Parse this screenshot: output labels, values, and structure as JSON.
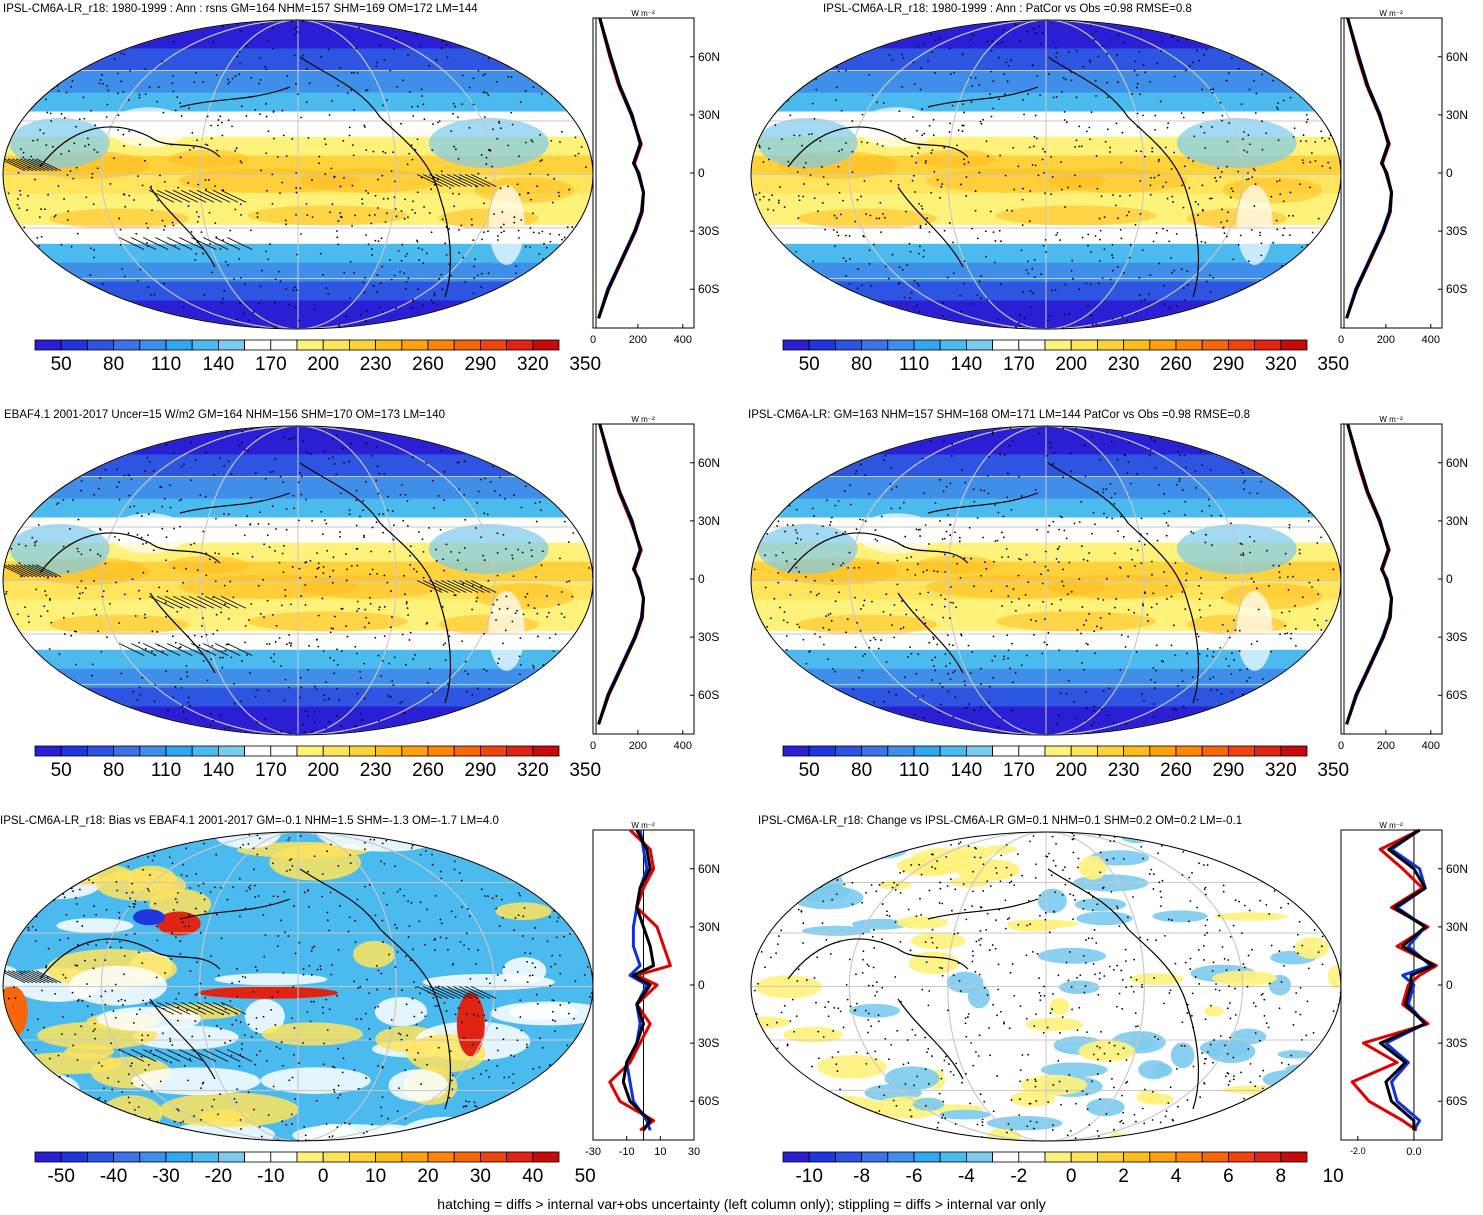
{
  "palettes": {
    "abs": [
      "#2b1fd6",
      "#1f36de",
      "#2e55e2",
      "#3c73e6",
      "#3f8fea",
      "#32a6ee",
      "#4bbaef",
      "#7ccbee",
      "#ffffff",
      "#ffffff",
      "#fff27a",
      "#ffe45c",
      "#ffd23c",
      "#ffbc1e",
      "#ffa10f",
      "#ff850a",
      "#f8660a",
      "#ef4410",
      "#e02414",
      "#c80a0a"
    ],
    "diff": [
      "#2b1fd6",
      "#1f36de",
      "#2e55e2",
      "#3c73e6",
      "#3f8fea",
      "#32a6ee",
      "#4bbaef",
      "#7ccbee",
      "#ffffff",
      "#ffffff",
      "#fff27a",
      "#ffe45c",
      "#ffd23c",
      "#ffbc1e",
      "#ffa10f",
      "#ff850a",
      "#f8660a",
      "#ef4410",
      "#e02414",
      "#c80a0a"
    ]
  },
  "colors": {
    "model_line": "#e00000",
    "obs_line": "#1030e0",
    "ens_line": "#000000",
    "grid": "#c8c8c8"
  },
  "footnote": "hatching = diffs > internal var+obs uncertainty (left column only); stippling = diffs > internal var only",
  "panels": [
    {
      "title": "IPSL-CM6A-LR_r18: 1980-1999 : Ann : rsns GM=164 NHM=157 SHM=169 OM=172 LM=144",
      "kind": "abs",
      "hatch": true,
      "colorbar_ticks": [
        "50",
        "80",
        "110",
        "140",
        "170",
        "200",
        "230",
        "260",
        "290",
        "320",
        "350"
      ],
      "profile": {
        "unit": "W m⁻²",
        "lat_ticks": [
          "60N",
          "30N",
          "0",
          "30S",
          "60S"
        ],
        "x_ticks": [
          "0",
          "200",
          "400"
        ],
        "xlim": [
          0,
          450
        ]
      }
    },
    {
      "title": "IPSL-CM6A-LR_r18: 1980-1999 : Ann : PatCor vs Obs =0.98 RMSE=0.8",
      "kind": "abs",
      "hatch": false,
      "colorbar_ticks": [
        "50",
        "80",
        "110",
        "140",
        "170",
        "200",
        "230",
        "260",
        "290",
        "320",
        "350"
      ],
      "profile": {
        "unit": "W m⁻²",
        "lat_ticks": [
          "60N",
          "30N",
          "0",
          "30S",
          "60S"
        ],
        "x_ticks": [
          "0",
          "200",
          "400"
        ],
        "xlim": [
          0,
          450
        ]
      }
    },
    {
      "title": "EBAF4.1 2001-2017 Uncer=15 W/m2 GM=164 NHM=156 SHM=170 OM=173 LM=140",
      "kind": "abs",
      "hatch": true,
      "colorbar_ticks": [
        "50",
        "80",
        "110",
        "140",
        "170",
        "200",
        "230",
        "260",
        "290",
        "320",
        "350"
      ],
      "profile": {
        "unit": "W m⁻²",
        "lat_ticks": [
          "60N",
          "30N",
          "0",
          "30S",
          "60S"
        ],
        "x_ticks": [
          "0",
          "200",
          "400"
        ],
        "xlim": [
          0,
          450
        ]
      }
    },
    {
      "title": "IPSL-CM6A-LR: GM=163 NHM=157 SHM=168 OM=171 LM=144 PatCor vs Obs =0.98 RMSE=0.8",
      "kind": "abs",
      "hatch": false,
      "colorbar_ticks": [
        "50",
        "80",
        "110",
        "140",
        "170",
        "200",
        "230",
        "260",
        "290",
        "320",
        "350"
      ],
      "profile": {
        "unit": "W m⁻²",
        "lat_ticks": [
          "60N",
          "30N",
          "0",
          "30S",
          "60S"
        ],
        "x_ticks": [
          "0",
          "200",
          "400"
        ],
        "xlim": [
          0,
          450
        ]
      }
    },
    {
      "title": "IPSL-CM6A-LR_r18: Bias vs EBAF4.1 2001-2017 GM=-0.1 NHM=1.5 SHM=-1.3 OM=-1.7 LM=4.0",
      "kind": "bias",
      "hatch": true,
      "colorbar_ticks": [
        "-50",
        "-40",
        "-30",
        "-20",
        "-10",
        "0",
        "10",
        "20",
        "30",
        "40",
        "50"
      ],
      "profile": {
        "unit": "W m⁻²",
        "lat_ticks": [
          "60N",
          "30N",
          "0",
          "30S",
          "60S"
        ],
        "x_ticks": [
          "-30",
          "-10",
          "10",
          "30"
        ],
        "xlim": [
          -30,
          30
        ]
      }
    },
    {
      "title": "IPSL-CM6A-LR_r18: Change vs IPSL-CM6A-LR GM=0.1 NHM=0.1 SHM=0.2 OM=0.2 LM=-0.1",
      "kind": "change",
      "hatch": false,
      "colorbar_ticks": [
        "-10",
        "-8",
        "-6",
        "-4",
        "-2",
        "0",
        "2",
        "4",
        "6",
        "8",
        "10"
      ],
      "profile": {
        "unit": "W m⁻²",
        "lat_ticks": [
          "60N",
          "30N",
          "0",
          "30S",
          "60S"
        ],
        "x_ticks": [
          "-2.0",
          "0.0"
        ],
        "xlim": [
          -2.6,
          1.0
        ]
      }
    }
  ],
  "chart_data": [
    {
      "type": "heatmap",
      "title": "IPSL-CM6A-LR_r18: 1980-1999 : Ann : rsns GM=164 NHM=157 SHM=169 OM=172 LM=144",
      "colorbar": [
        "50",
        "80",
        "110",
        "140",
        "170",
        "200",
        "230",
        "260",
        "290",
        "320",
        "350"
      ],
      "zonal_mean": {
        "lat": [
          80,
          60,
          45,
          30,
          15,
          5,
          0,
          -10,
          -20,
          -30,
          -45,
          -60,
          -75
        ],
        "model": [
          30,
          75,
          115,
          170,
          215,
          185,
          200,
          225,
          220,
          190,
          130,
          70,
          25
        ],
        "obs": [
          30,
          80,
          120,
          175,
          210,
          180,
          205,
          225,
          215,
          185,
          125,
          65,
          25
        ],
        "ensemble": [
          30,
          78,
          118,
          172,
          212,
          182,
          202,
          225,
          218,
          188,
          128,
          68,
          25
        ]
      }
    },
    {
      "type": "heatmap",
      "title": "IPSL-CM6A-LR_r18: 1980-1999 : Ann : PatCor vs Obs =0.98 RMSE=0.8",
      "colorbar": [
        "50",
        "80",
        "110",
        "140",
        "170",
        "200",
        "230",
        "260",
        "290",
        "320",
        "350"
      ],
      "zonal_mean": {
        "lat": [
          80,
          60,
          45,
          30,
          15,
          5,
          0,
          -10,
          -20,
          -30,
          -45,
          -60,
          -75
        ],
        "model": [
          30,
          75,
          115,
          170,
          215,
          185,
          200,
          225,
          220,
          190,
          130,
          70,
          25
        ],
        "obs": [
          30,
          80,
          120,
          175,
          210,
          180,
          205,
          225,
          215,
          185,
          125,
          65,
          25
        ],
        "ensemble": [
          30,
          78,
          118,
          172,
          212,
          182,
          202,
          225,
          218,
          188,
          128,
          68,
          25
        ]
      }
    },
    {
      "type": "heatmap",
      "title": "EBAF4.1 2001-2017 Uncer=15 W/m2 GM=164 NHM=156 SHM=170 OM=173 LM=140",
      "colorbar": [
        "50",
        "80",
        "110",
        "140",
        "170",
        "200",
        "230",
        "260",
        "290",
        "320",
        "350"
      ],
      "zonal_mean": {
        "lat": [
          80,
          60,
          45,
          30,
          15,
          5,
          0,
          -10,
          -20,
          -30,
          -45,
          -60,
          -75
        ],
        "model": [
          30,
          75,
          115,
          168,
          215,
          185,
          200,
          225,
          220,
          190,
          130,
          70,
          25
        ],
        "obs": [
          30,
          80,
          120,
          175,
          210,
          180,
          205,
          225,
          215,
          185,
          125,
          65,
          25
        ],
        "ensemble": [
          30,
          78,
          118,
          172,
          212,
          182,
          202,
          225,
          218,
          188,
          128,
          68,
          25
        ]
      }
    },
    {
      "type": "heatmap",
      "title": "IPSL-CM6A-LR: GM=163 NHM=157 SHM=168 OM=171 LM=144 PatCor vs Obs =0.98 RMSE=0.8",
      "colorbar": [
        "50",
        "80",
        "110",
        "140",
        "170",
        "200",
        "230",
        "260",
        "290",
        "320",
        "350"
      ],
      "zonal_mean": {
        "lat": [
          80,
          60,
          45,
          30,
          15,
          5,
          0,
          -10,
          -20,
          -30,
          -45,
          -60,
          -75
        ],
        "model": [
          30,
          75,
          115,
          170,
          215,
          185,
          200,
          225,
          220,
          190,
          130,
          70,
          25
        ],
        "obs": [
          30,
          80,
          120,
          175,
          210,
          180,
          205,
          225,
          215,
          185,
          125,
          65,
          25
        ],
        "ensemble": [
          30,
          78,
          118,
          172,
          212,
          182,
          202,
          225,
          218,
          188,
          128,
          68,
          25
        ]
      }
    },
    {
      "type": "heatmap",
      "title": "IPSL-CM6A-LR_r18: Bias vs EBAF4.1 2001-2017 GM=-0.1 NHM=1.5 SHM=-1.3 OM=-1.7 LM=4.0",
      "colorbar": [
        "-50",
        "-40",
        "-30",
        "-20",
        "-10",
        "0",
        "10",
        "20",
        "30",
        "40",
        "50"
      ],
      "zonal_mean": {
        "lat": [
          80,
          70,
          60,
          50,
          40,
          30,
          20,
          10,
          5,
          0,
          -10,
          -20,
          -30,
          -40,
          -50,
          -60,
          -70,
          -75
        ],
        "model": [
          -8,
          4,
          6,
          0,
          -4,
          8,
          12,
          16,
          -4,
          8,
          -4,
          4,
          -2,
          -8,
          -20,
          -14,
          6,
          -2
        ],
        "obs": [
          -2,
          0,
          2,
          -2,
          -4,
          -6,
          -6,
          -2,
          -8,
          2,
          -4,
          -2,
          -4,
          -10,
          -8,
          -6,
          2,
          4
        ],
        "ensemble": [
          -4,
          2,
          4,
          -2,
          -4,
          0,
          4,
          6,
          -6,
          4,
          -4,
          0,
          -4,
          -10,
          -12,
          -8,
          4,
          0
        ]
      }
    },
    {
      "type": "heatmap",
      "title": "IPSL-CM6A-LR_r18: Change vs IPSL-CM6A-LR GM=0.1 NHM=0.1 SHM=0.2 OM=0.2 LM=-0.1",
      "colorbar": [
        "-10",
        "-8",
        "-6",
        "-4",
        "-2",
        "0",
        "2",
        "4",
        "6",
        "8",
        "10"
      ],
      "zonal_mean": {
        "lat": [
          80,
          70,
          60,
          50,
          40,
          30,
          20,
          10,
          5,
          0,
          -10,
          -20,
          -30,
          -40,
          -50,
          -60,
          -70,
          -75
        ],
        "model": [
          0.2,
          -1.2,
          -0.4,
          0.3,
          -0.8,
          0.5,
          -0.6,
          0.8,
          0.2,
          -0.2,
          -0.4,
          0.5,
          -1.8,
          -0.6,
          -2.2,
          -1.6,
          -0.4,
          0.1
        ],
        "obs": [
          0.2,
          -0.8,
          0.2,
          0.4,
          -0.6,
          0.4,
          -0.2,
          0.6,
          -0.4,
          0.0,
          -0.2,
          0.4,
          -1.0,
          -0.2,
          -0.8,
          -0.6,
          0.2,
          0.0
        ],
        "ensemble": [
          0.2,
          -0.9,
          0.0,
          0.4,
          -0.7,
          0.4,
          -0.4,
          0.7,
          -0.1,
          -0.1,
          -0.3,
          0.4,
          -1.2,
          -0.3,
          -1.0,
          -0.8,
          0.0,
          0.0
        ]
      }
    }
  ]
}
